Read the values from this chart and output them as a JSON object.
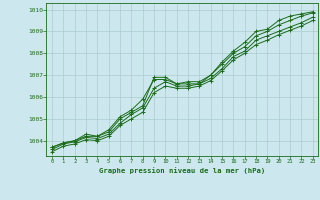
{
  "xlabel": "Graphe pression niveau de la mer (hPa)",
  "ylim": [
    1003.3,
    1010.3
  ],
  "xlim": [
    -0.5,
    23.5
  ],
  "yticks": [
    1004,
    1005,
    1006,
    1007,
    1008,
    1009,
    1010
  ],
  "xticks": [
    0,
    1,
    2,
    3,
    4,
    5,
    6,
    7,
    8,
    9,
    10,
    11,
    12,
    13,
    14,
    15,
    16,
    17,
    18,
    19,
    20,
    21,
    22,
    23
  ],
  "bg_color": "#cce8ee",
  "grid_color": "#aacccc",
  "line_color": "#1a6b1a",
  "series": [
    [
      1003.7,
      1003.9,
      1004.0,
      1004.3,
      1004.2,
      1004.4,
      1005.0,
      1005.3,
      1005.6,
      1006.9,
      1006.9,
      1006.6,
      1006.7,
      1006.7,
      1007.0,
      1007.6,
      1008.1,
      1008.5,
      1009.0,
      1009.1,
      1009.5,
      1009.7,
      1009.8,
      1009.9
    ],
    [
      1003.7,
      1003.9,
      1004.0,
      1004.2,
      1004.2,
      1004.5,
      1005.1,
      1005.4,
      1005.9,
      1006.8,
      1006.8,
      1006.6,
      1006.6,
      1006.6,
      1007.0,
      1007.5,
      1008.0,
      1008.3,
      1008.8,
      1009.0,
      1009.3,
      1009.5,
      1009.7,
      1009.85
    ],
    [
      1003.6,
      1003.85,
      1003.95,
      1004.15,
      1004.1,
      1004.3,
      1004.8,
      1005.2,
      1005.5,
      1006.4,
      1006.7,
      1006.5,
      1006.5,
      1006.6,
      1006.85,
      1007.3,
      1007.85,
      1008.1,
      1008.6,
      1008.8,
      1009.0,
      1009.2,
      1009.4,
      1009.65
    ],
    [
      1003.5,
      1003.75,
      1003.85,
      1004.05,
      1004.0,
      1004.2,
      1004.7,
      1005.0,
      1005.3,
      1006.2,
      1006.5,
      1006.4,
      1006.4,
      1006.5,
      1006.75,
      1007.2,
      1007.7,
      1008.0,
      1008.4,
      1008.6,
      1008.85,
      1009.05,
      1009.25,
      1009.5
    ]
  ]
}
